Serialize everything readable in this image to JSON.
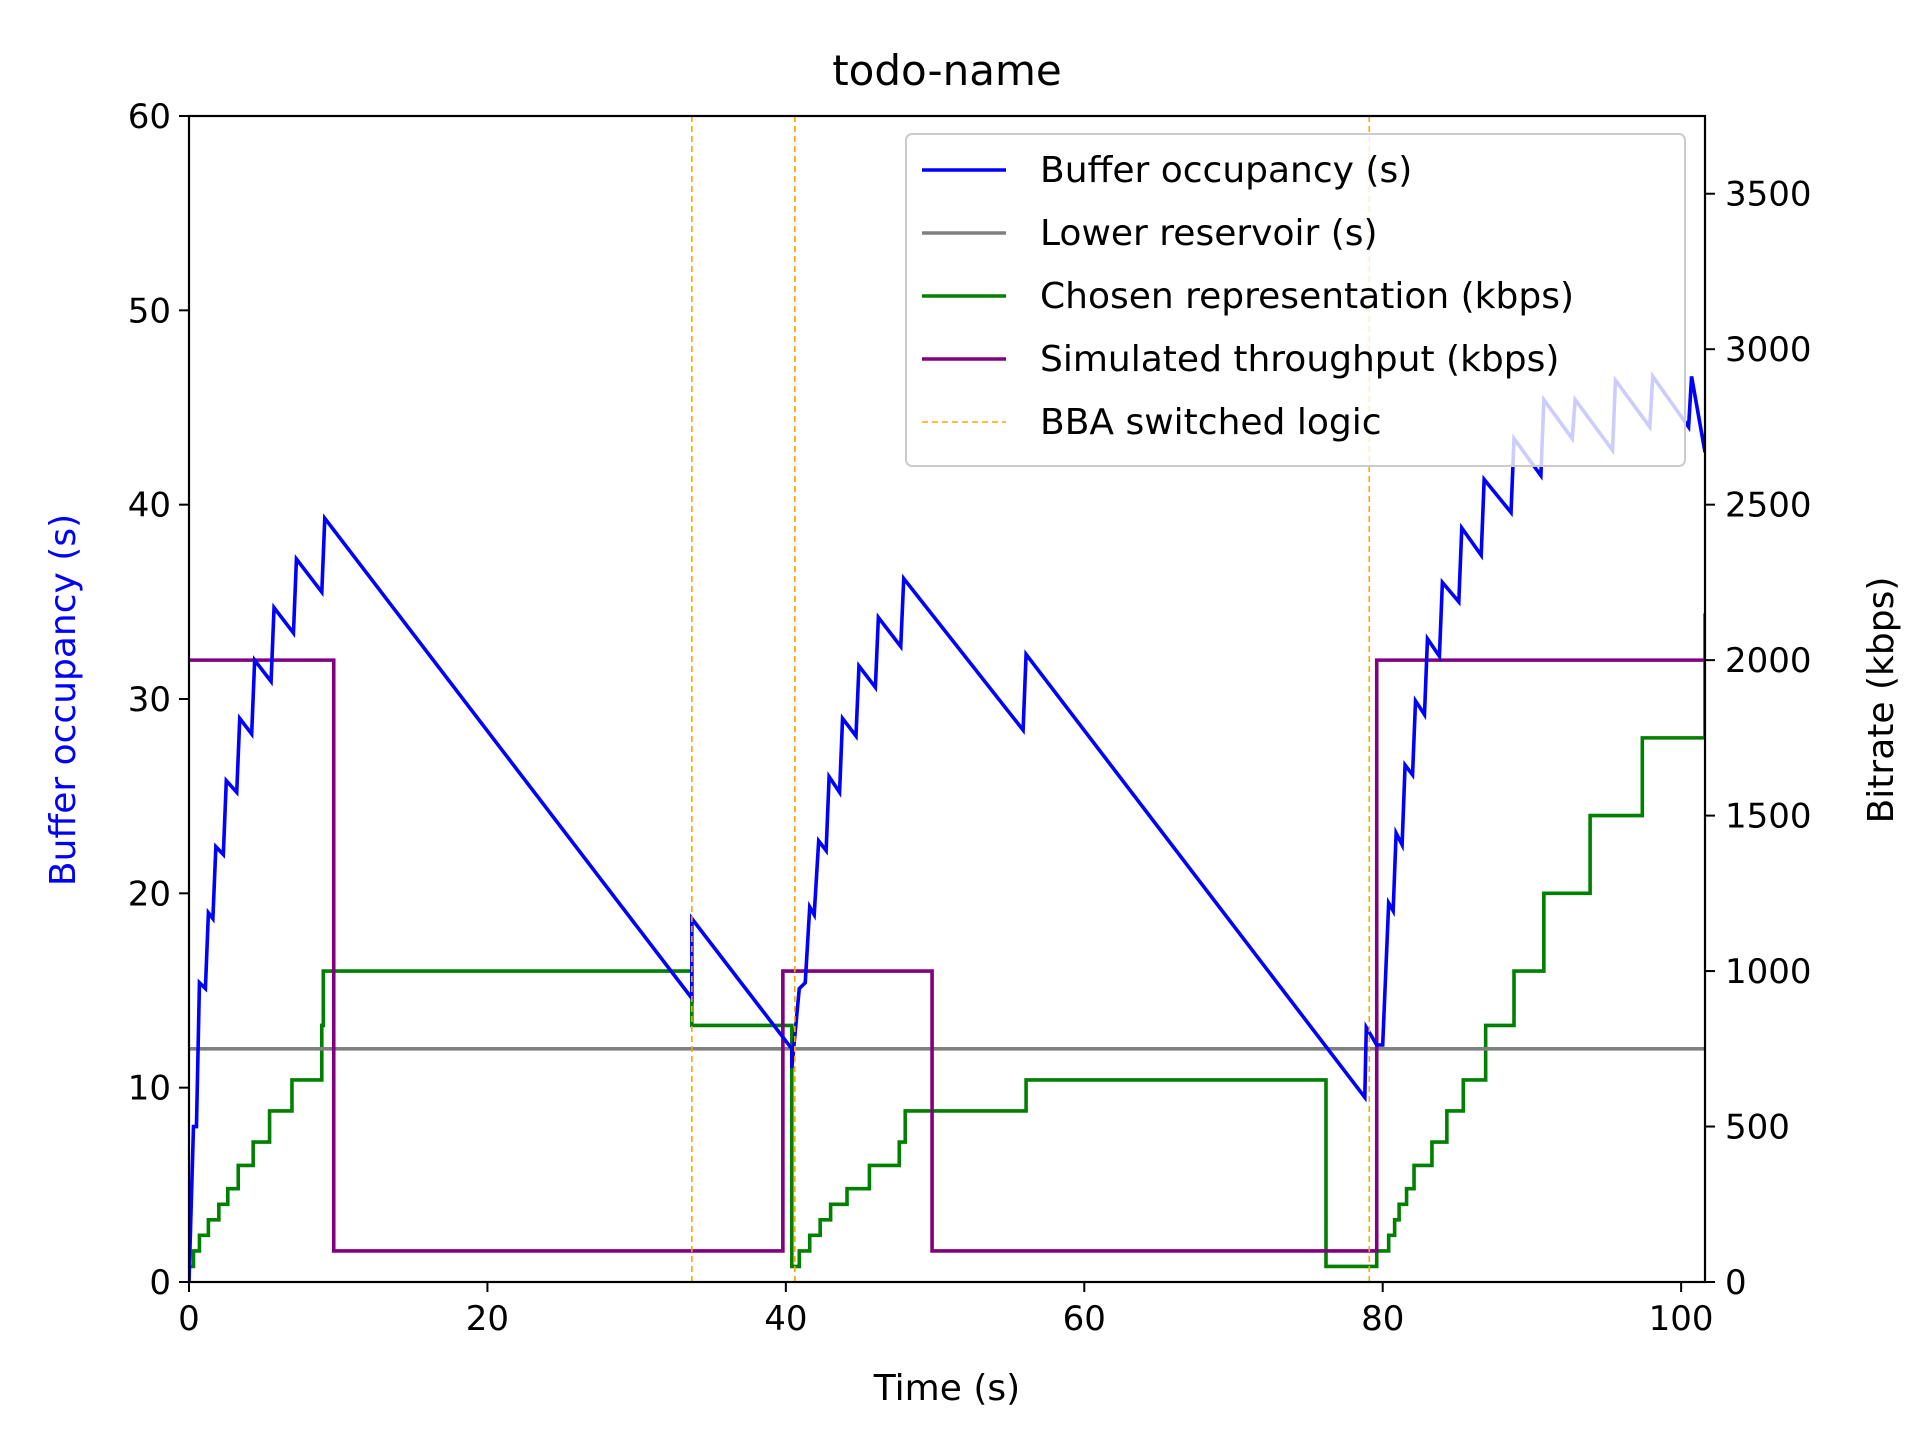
{
  "chart_data": {
    "type": "line",
    "title": "todo-name",
    "xlabel": "Time (s)",
    "ylabel_left": "Buffer occupancy (s)",
    "ylabel_right": "Bitrate (kbps)",
    "xlim": [
      0,
      101.6
    ],
    "ylim_left": [
      0,
      60
    ],
    "ylim_right": [
      0,
      3750
    ],
    "x_ticks": [
      0,
      20,
      40,
      60,
      80,
      100
    ],
    "y_left_ticks": [
      0,
      10,
      20,
      30,
      40,
      50,
      60
    ],
    "y_right_ticks": [
      0,
      500,
      1000,
      1500,
      2000,
      2500,
      3000,
      3500
    ],
    "grid": false,
    "legend_position": "top-right",
    "colors": {
      "buffer": "#0000ff",
      "reservoir": "#808080",
      "representation": "#008000",
      "throughput": "#800080",
      "switch": "#ffa500",
      "left_axis_label": "#0000ff"
    },
    "series": [
      {
        "name": "Buffer occupancy (s)",
        "axis": "left",
        "color": "#0000ff",
        "points": [
          [
            0,
            0
          ],
          [
            0.3,
            8
          ],
          [
            0.5,
            8
          ],
          [
            0.7,
            15.4
          ],
          [
            1.1,
            15.1
          ],
          [
            1.3,
            19
          ],
          [
            1.6,
            18.7
          ],
          [
            1.8,
            22.4
          ],
          [
            2.3,
            22
          ],
          [
            2.5,
            25.8
          ],
          [
            3.2,
            25.2
          ],
          [
            3.4,
            29
          ],
          [
            4.2,
            28.2
          ],
          [
            4.4,
            32
          ],
          [
            5.5,
            30.9
          ],
          [
            5.7,
            34.7
          ],
          [
            7.0,
            33.4
          ],
          [
            7.2,
            37.2
          ],
          [
            8.9,
            35.5
          ],
          [
            9.1,
            39.3
          ],
          [
            33.7,
            14.6
          ],
          [
            33.7,
            18.7
          ],
          [
            40.4,
            12
          ],
          [
            40.4,
            11
          ],
          [
            40.9,
            15.1
          ],
          [
            41.3,
            15.4
          ],
          [
            41.6,
            19.3
          ],
          [
            41.9,
            18.9
          ],
          [
            42.2,
            22.7
          ],
          [
            42.7,
            22.2
          ],
          [
            42.9,
            26
          ],
          [
            43.6,
            25.2
          ],
          [
            43.8,
            29
          ],
          [
            44.7,
            28.1
          ],
          [
            44.9,
            31.7
          ],
          [
            46.0,
            30.6
          ],
          [
            46.2,
            34.2
          ],
          [
            47.7,
            32.7
          ],
          [
            47.9,
            36.2
          ],
          [
            55.9,
            28.4
          ],
          [
            56.1,
            32.3
          ],
          [
            78.8,
            9.5
          ],
          [
            78.9,
            13.1
          ],
          [
            79.6,
            12.2
          ],
          [
            80.0,
            12.2
          ],
          [
            80.4,
            19.5
          ],
          [
            80.7,
            19.1
          ],
          [
            80.9,
            23.1
          ],
          [
            81.3,
            22.5
          ],
          [
            81.5,
            26.6
          ],
          [
            82.0,
            26.1
          ],
          [
            82.2,
            29.9
          ],
          [
            82.8,
            29.2
          ],
          [
            83.0,
            33.1
          ],
          [
            83.8,
            32.2
          ],
          [
            84.0,
            36
          ],
          [
            85.1,
            35
          ],
          [
            85.3,
            38.8
          ],
          [
            86.6,
            37.4
          ],
          [
            86.8,
            41.3
          ],
          [
            88.6,
            39.6
          ],
          [
            88.8,
            43.4
          ],
          [
            90.6,
            41.5
          ],
          [
            90.8,
            45.4
          ],
          [
            92.7,
            43.4
          ],
          [
            92.9,
            45.4
          ],
          [
            95.4,
            42.8
          ],
          [
            95.6,
            46.4
          ],
          [
            97.9,
            44
          ],
          [
            98.1,
            46.6
          ],
          [
            100.5,
            44
          ],
          [
            100.7,
            46.6
          ],
          [
            101.6,
            42.7
          ],
          [
            101.8,
            46.8
          ]
        ]
      },
      {
        "name": "Lower reservoir (s)",
        "axis": "left",
        "color": "#808080",
        "points": [
          [
            0,
            12
          ],
          [
            101.6,
            12
          ]
        ]
      },
      {
        "name": "Chosen representation (kbps)",
        "axis": "right",
        "color": "#008000",
        "step": true,
        "points": [
          [
            0,
            50
          ],
          [
            0.3,
            100
          ],
          [
            0.7,
            150
          ],
          [
            1.3,
            200
          ],
          [
            2.0,
            250
          ],
          [
            2.6,
            300
          ],
          [
            3.3,
            375
          ],
          [
            4.3,
            450
          ],
          [
            5.4,
            550
          ],
          [
            6.9,
            650
          ],
          [
            8.9,
            825
          ],
          [
            9.0,
            1000
          ],
          [
            33.7,
            825
          ],
          [
            40.4,
            50
          ],
          [
            40.9,
            100
          ],
          [
            41.6,
            150
          ],
          [
            42.3,
            200
          ],
          [
            43.0,
            250
          ],
          [
            44.1,
            300
          ],
          [
            45.6,
            375
          ],
          [
            47.6,
            450
          ],
          [
            48.0,
            550
          ],
          [
            55.9,
            550
          ],
          [
            56.1,
            650
          ],
          [
            76.2,
            50
          ],
          [
            79.6,
            100
          ],
          [
            80.4,
            150
          ],
          [
            80.8,
            200
          ],
          [
            81.1,
            250
          ],
          [
            81.6,
            300
          ],
          [
            82.1,
            375
          ],
          [
            83.3,
            450
          ],
          [
            84.3,
            550
          ],
          [
            85.4,
            650
          ],
          [
            86.9,
            825
          ],
          [
            88.8,
            1000
          ],
          [
            90.8,
            1250
          ],
          [
            93.9,
            1500
          ],
          [
            97.4,
            1750
          ],
          [
            101.6,
            2150
          ]
        ]
      },
      {
        "name": "Simulated throughput (kbps)",
        "axis": "right",
        "color": "#800080",
        "step": true,
        "points": [
          [
            0,
            2000
          ],
          [
            9.7,
            100
          ],
          [
            39.8,
            1000
          ],
          [
            49.8,
            100
          ],
          [
            79.6,
            2000
          ],
          [
            101.6,
            2000
          ]
        ]
      },
      {
        "name": "BBA switched logic",
        "axis": "vertical",
        "color": "#ffa500",
        "x": [
          33.7,
          40.6,
          79.1
        ]
      }
    ]
  }
}
